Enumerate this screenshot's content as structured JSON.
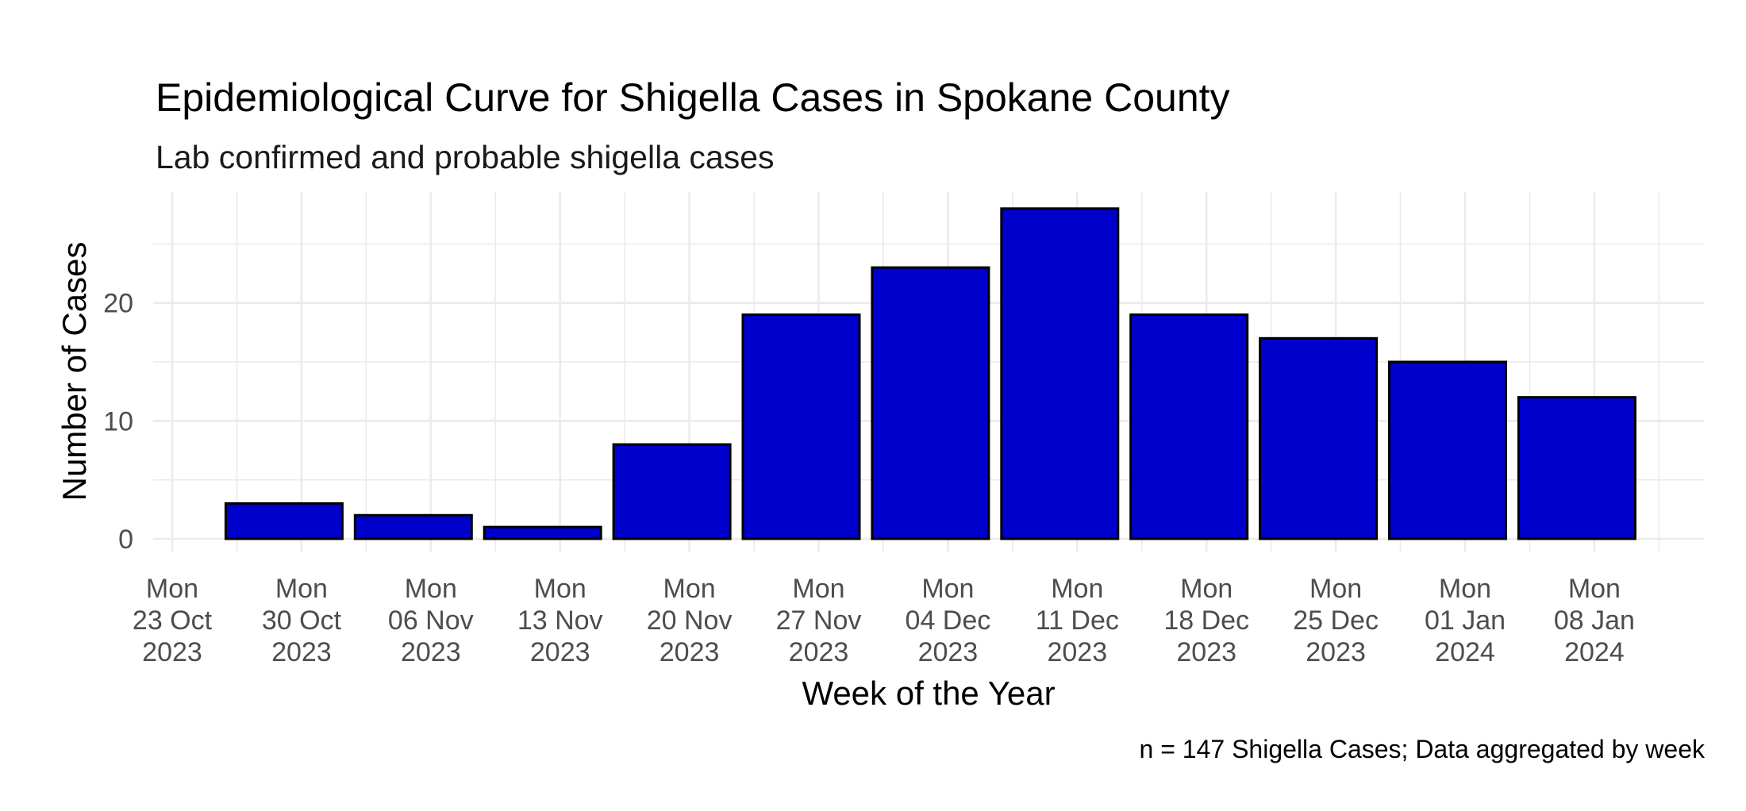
{
  "chart_data": {
    "type": "bar",
    "title": "Epidemiological Curve for Shigella Cases in Spokane County",
    "subtitle": "Lab confirmed and probable shigella cases",
    "xlabel": "Week of the Year",
    "ylabel": "Number of Cases",
    "caption": "n = 147 Shigella Cases; Data aggregated by week",
    "categories": [
      [
        "Mon",
        "23 Oct",
        "2023"
      ],
      [
        "Mon",
        "30 Oct",
        "2023"
      ],
      [
        "Mon",
        "06 Nov",
        "2023"
      ],
      [
        "Mon",
        "13 Nov",
        "2023"
      ],
      [
        "Mon",
        "20 Nov",
        "2023"
      ],
      [
        "Mon",
        "27 Nov",
        "2023"
      ],
      [
        "Mon",
        "04 Dec",
        "2023"
      ],
      [
        "Mon",
        "11 Dec",
        "2023"
      ],
      [
        "Mon",
        "18 Dec",
        "2023"
      ],
      [
        "Mon",
        "25 Dec",
        "2023"
      ],
      [
        "Mon",
        "01 Jan",
        "2024"
      ],
      [
        "Mon",
        "08 Jan",
        "2024"
      ]
    ],
    "values": [
      0,
      3,
      2,
      1,
      8,
      19,
      23,
      28,
      19,
      17,
      15,
      12
    ],
    "yticks": [
      0,
      10,
      20
    ],
    "yminor": [
      5,
      15,
      25
    ],
    "ylim": [
      0,
      29.4
    ],
    "grid": true,
    "legend": null,
    "colors": {
      "bar_fill": "#0000CC",
      "bar_edge": "#000000",
      "grid": "#EBEBEB",
      "tick_text": "#4D4D4D"
    }
  }
}
